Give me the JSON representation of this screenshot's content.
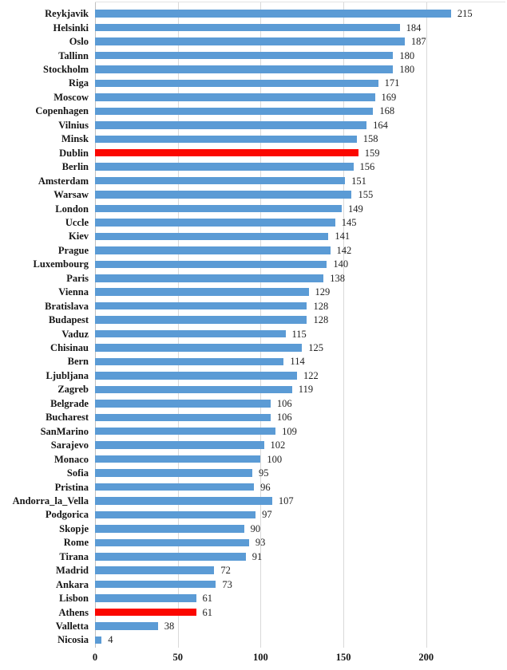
{
  "chart_data": {
    "type": "bar",
    "orientation": "horizontal",
    "title": "",
    "xlabel": "",
    "ylabel": "",
    "grid": true,
    "legend_position": "none",
    "xlim": [
      0,
      248
    ],
    "x_ticks": [
      0,
      50,
      100,
      150,
      200
    ],
    "x_tick_labels": [
      "0",
      "50",
      "100",
      "150",
      "200"
    ],
    "bar_color": "#5B9BD5",
    "highlight_color": "#FB0700",
    "highlight_indices": [
      10,
      43
    ],
    "categories": [
      "Reykjavik",
      "Helsinki",
      "Oslo",
      "Tallinn",
      "Stockholm",
      "Riga",
      "Moscow",
      "Copenhagen",
      "Vilnius",
      "Minsk",
      "Dublin",
      "Berlin",
      "Amsterdam",
      "Warsaw",
      "London",
      "Uccle",
      "Kiev",
      "Prague",
      "Luxembourg",
      "Paris",
      "Vienna",
      "Bratislava",
      "Budapest",
      "Vaduz",
      "Chisinau",
      "Bern",
      "Ljubljana",
      "Zagreb",
      "Belgrade",
      "Bucharest",
      "SanMarino",
      "Sarajevo",
      "Monaco",
      "Sofia",
      "Pristina",
      "Andorra_la_Vella",
      "Podgorica",
      "Skopje",
      "Rome",
      "Tirana",
      "Madrid",
      "Ankara",
      "Lisbon",
      "Athens",
      "Valletta",
      "Nicosia"
    ],
    "values": [
      215,
      184,
      187,
      180,
      180,
      171,
      169,
      168,
      164,
      158,
      159,
      156,
      151,
      155,
      149,
      145,
      141,
      142,
      140,
      138,
      129,
      128,
      128,
      115,
      125,
      114,
      122,
      119,
      106,
      106,
      109,
      102,
      100,
      95,
      96,
      107,
      97,
      90,
      93,
      91,
      72,
      73,
      61,
      61,
      38,
      4
    ],
    "data_labels": true
  }
}
